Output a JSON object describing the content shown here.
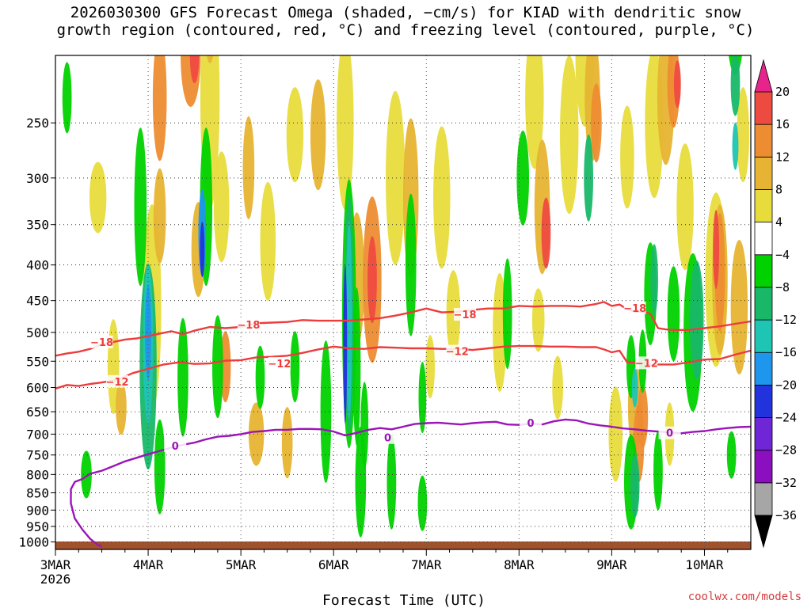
{
  "chart_data": {
    "type": "heatmap",
    "title_lines": [
      "2026030300 GFS Forecast Omega (shaded, −cm/s) for KIAD with dendritic snow",
      "growth region (contoured, red, °C) and freezing level (contoured, purple, °C)"
    ],
    "xlabel": "Forecast Time (UTC)",
    "ylabel": "",
    "credit": "coolwx.com/models",
    "x_axis": {
      "unit": "forecast hour",
      "range": [
        0,
        180
      ],
      "ticks": [
        {
          "hour": 0,
          "label": "3MAR",
          "sublabel": "2026"
        },
        {
          "hour": 24,
          "label": "4MAR"
        },
        {
          "hour": 48,
          "label": "5MAR"
        },
        {
          "hour": 72,
          "label": "6MAR"
        },
        {
          "hour": 96,
          "label": "7MAR"
        },
        {
          "hour": 120,
          "label": "8MAR"
        },
        {
          "hour": 144,
          "label": "9MAR"
        },
        {
          "hour": 168,
          "label": "10MAR"
        }
      ]
    },
    "y_axis": {
      "unit": "hPa",
      "range": [
        1025,
        200
      ],
      "scale": "log",
      "ticks": [
        250,
        300,
        350,
        400,
        450,
        500,
        550,
        600,
        650,
        700,
        750,
        800,
        850,
        900,
        950,
        1000
      ]
    },
    "colorbar": {
      "levels": [
        -36,
        -32,
        -28,
        -24,
        -20,
        -16,
        -12,
        -8,
        -4,
        4,
        8,
        12,
        16,
        20
      ],
      "labels": [
        "20",
        "16",
        "12",
        "8",
        "4",
        "−4",
        "−8",
        "−12",
        "−16",
        "−20",
        "−24",
        "−28",
        "−32",
        "−36"
      ],
      "colors": [
        "#000000",
        "#a6a6a6",
        "#8b0fbf",
        "#6e26d6",
        "#2233dd",
        "#1e96ee",
        "#1ec4b4",
        "#18b868",
        "#00d200",
        "#ffffff",
        "#e8dc3c",
        "#e6b432",
        "#ee8c32",
        "#ee4b40",
        "#e6248c"
      ]
    },
    "series": [
      {
        "name": "dendritic -18°C",
        "color": "#ee3c3c",
        "label": "−18",
        "label_at": [
          {
            "hour": 12,
            "p": 516
          },
          {
            "hour": 50,
            "p": 487
          },
          {
            "hour": 106,
            "p": 471
          },
          {
            "hour": 150,
            "p": 461
          }
        ],
        "x": [
          0,
          3,
          6,
          9,
          12,
          15,
          18,
          21,
          24,
          27,
          30,
          33,
          36,
          40,
          44,
          48,
          52,
          56,
          60,
          64,
          68,
          72,
          76,
          80,
          84,
          88,
          92,
          96,
          100,
          104,
          108,
          112,
          116,
          120,
          124,
          128,
          132,
          136,
          140,
          142,
          144,
          146,
          148,
          150,
          152,
          154,
          156,
          158,
          160,
          164,
          168,
          172,
          176,
          180
        ],
        "p": [
          540,
          536,
          533,
          528,
          520,
          516,
          512,
          510,
          506,
          502,
          498,
          503,
          497,
          491,
          493,
          491,
          485,
          484,
          483,
          480,
          481,
          481,
          481,
          479,
          477,
          473,
          468,
          462,
          468,
          467,
          464,
          462,
          462,
          458,
          459,
          458,
          458,
          459,
          455,
          452,
          458,
          456,
          463,
          467,
          467,
          470,
          493,
          495,
          496,
          496,
          493,
          490,
          486,
          482
        ]
      },
      {
        "name": "dendritic -12°C",
        "color": "#ee3c3c",
        "label": "−12",
        "label_at": [
          {
            "hour": 16,
            "p": 588
          },
          {
            "hour": 58,
            "p": 554
          },
          {
            "hour": 104,
            "p": 532
          },
          {
            "hour": 153,
            "p": 553
          }
        ],
        "x": [
          0,
          3,
          6,
          9,
          12,
          16,
          20,
          24,
          28,
          32,
          36,
          40,
          44,
          48,
          52,
          56,
          60,
          64,
          68,
          72,
          76,
          80,
          84,
          88,
          92,
          96,
          100,
          104,
          108,
          112,
          116,
          120,
          124,
          128,
          132,
          136,
          140,
          142,
          144,
          146,
          148,
          150,
          152,
          154,
          156,
          158,
          160,
          164,
          168,
          172,
          176,
          180
        ],
        "p": [
          602,
          595,
          597,
          593,
          590,
          585,
          572,
          564,
          556,
          552,
          555,
          554,
          549,
          548,
          543,
          542,
          540,
          535,
          529,
          524,
          527,
          528,
          525,
          526,
          527,
          527,
          528,
          528,
          530,
          527,
          524,
          523,
          523,
          524,
          524,
          525,
          525,
          529,
          534,
          531,
          552,
          553,
          553,
          556,
          556,
          556,
          556,
          552,
          547,
          546,
          538,
          531
        ]
      },
      {
        "name": "freezing level 0°C",
        "color": "#9b15b8",
        "label": "0",
        "label_at": [
          {
            "hour": 31,
            "p": 727
          },
          {
            "hour": 86,
            "p": 708
          },
          {
            "hour": 123,
            "p": 674
          },
          {
            "hour": 159,
            "p": 697
          }
        ],
        "x": [
          12,
          11,
          9,
          7,
          5,
          4,
          4,
          5,
          7,
          9,
          12,
          15,
          18,
          21,
          24,
          27,
          30,
          33,
          36,
          39,
          42,
          45,
          48,
          51,
          54,
          57,
          60,
          63,
          66,
          69,
          72,
          75,
          78,
          81,
          84,
          87,
          90,
          93,
          96,
          99,
          102,
          105,
          108,
          111,
          114,
          117,
          120,
          123,
          126,
          129,
          132,
          135,
          138,
          141,
          144,
          147,
          150,
          153,
          156,
          159,
          162,
          165,
          168,
          171,
          174,
          177,
          180
        ],
        "p": [
          1015,
          1010,
          990,
          960,
          925,
          880,
          840,
          820,
          812,
          798,
          790,
          778,
          766,
          757,
          748,
          740,
          732,
          725,
          720,
          712,
          706,
          704,
          700,
          695,
          693,
          690,
          690,
          688,
          688,
          689,
          694,
          703,
          697,
          690,
          686,
          689,
          683,
          677,
          675,
          674,
          676,
          678,
          675,
          673,
          672,
          678,
          679,
          676,
          678,
          671,
          667,
          669,
          676,
          680,
          683,
          687,
          689,
          692,
          694,
          696,
          698,
          695,
          693,
          689,
          686,
          684,
          683
        ]
      }
    ]
  }
}
